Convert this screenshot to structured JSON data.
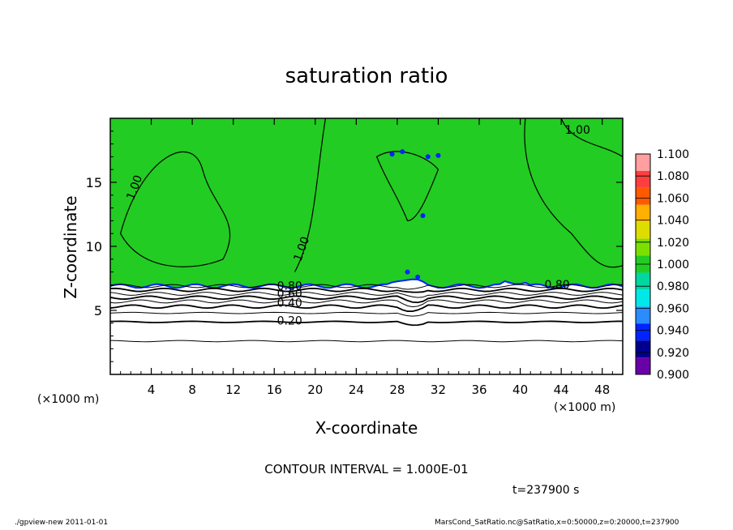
{
  "chart_data": {
    "type": "heatmap",
    "title": "saturation ratio",
    "xlabel": "X-coordinate",
    "ylabel": "Z-coordinate",
    "x_unit": "(×1000 m)",
    "z_unit": "(×1000 m)",
    "xlim": [
      0,
      50
    ],
    "ylim": [
      0,
      20
    ],
    "x_ticks": [
      4,
      8,
      12,
      16,
      20,
      24,
      28,
      32,
      36,
      40,
      44,
      48
    ],
    "y_ticks": [
      5,
      10,
      15
    ],
    "colorbar": {
      "levels": [
        "1.100",
        "1.080",
        "1.060",
        "1.040",
        "1.020",
        "1.000",
        "0.980",
        "0.960",
        "0.940",
        "0.920",
        "0.900"
      ],
      "colors": [
        "#ff9f9f",
        "#ff3f3f",
        "#ff5a00",
        "#ffb000",
        "#dddd00",
        "#7be000",
        "#22cc22",
        "#00d8a0",
        "#00e8e8",
        "#2a8cff",
        "#0024ff",
        "#00008f",
        "#6a00a8"
      ]
    },
    "fill_colors": {
      "saturated": "#22cc22",
      "subsaturated": "#ffffff"
    },
    "contour_labels": [
      {
        "text": "1.00",
        "x": 2.7,
        "z": 14.5
      },
      {
        "text": "1.00",
        "x": 19.0,
        "z": 9.7
      },
      {
        "text": "1.00",
        "x": 45.6,
        "z": 18.8
      },
      {
        "text": "0.80",
        "x": 17.5,
        "z": 6.6
      },
      {
        "text": "0.60",
        "x": 17.5,
        "z": 6.0
      },
      {
        "text": "0.40",
        "x": 17.5,
        "z": 5.3
      },
      {
        "text": "0.20",
        "x": 17.5,
        "z": 3.9
      },
      {
        "text": "0.80",
        "x": 43.6,
        "z": 6.7
      }
    ],
    "contour_levels_z": [
      {
        "value": 0.9,
        "z": 6.9
      },
      {
        "value": 0.8,
        "z": 6.6
      },
      {
        "value": 0.7,
        "z": 6.3
      },
      {
        "value": 0.6,
        "z": 6.0
      },
      {
        "value": 0.5,
        "z": 5.7
      },
      {
        "value": 0.4,
        "z": 5.3
      },
      {
        "value": 0.3,
        "z": 4.8
      },
      {
        "value": 0.2,
        "z": 4.1
      },
      {
        "value": 0.1,
        "z": 2.6
      }
    ],
    "contour_interval_text": "CONTOUR INTERVAL = 1.000E-01",
    "time_text": "t=237900 s"
  },
  "footer": {
    "left": "./gpview-new  2011-01-01",
    "right": "MarsCond_SatRatio.nc@SatRatio,x=0:50000,z=0:20000,t=237900"
  }
}
